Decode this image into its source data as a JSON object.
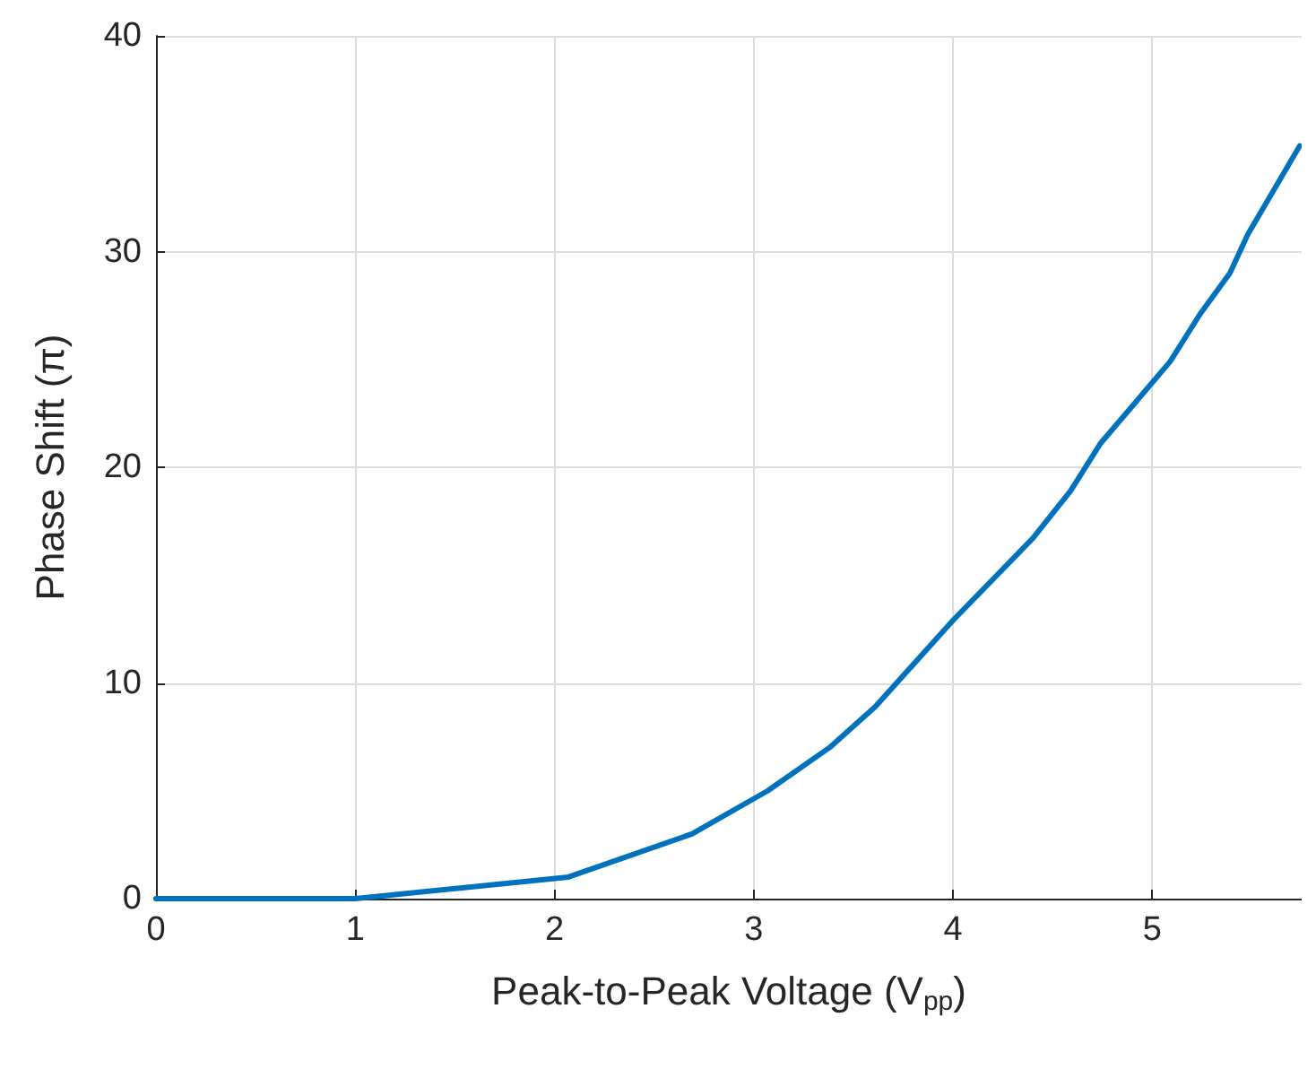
{
  "chart_data": {
    "type": "line",
    "xlabel": "Peak-to-Peak Voltage (V$_{pp}$)",
    "ylabel": "Phase Shift (π)",
    "xlim": [
      0,
      5.75
    ],
    "xticks": [
      0,
      1,
      2,
      3,
      4,
      5
    ],
    "ylim": [
      0,
      40
    ],
    "yticks": [
      0,
      10,
      20,
      30,
      40
    ],
    "grid": true,
    "marker": "none",
    "line_style": "solid",
    "series": [
      {
        "color": "#0072bd",
        "x": [
          0,
          1,
          2.07,
          2.69,
          3.07,
          3.38,
          3.61,
          4.0,
          4.4,
          4.59,
          4.74,
          5.09,
          5.24,
          5.39,
          5.48,
          5.74
        ],
        "values": [
          0,
          0,
          1,
          3,
          5,
          7,
          8.9,
          12.9,
          16.7,
          18.9,
          21.1,
          24.9,
          27.1,
          29.0,
          30.8,
          34.9
        ]
      }
    ]
  }
}
